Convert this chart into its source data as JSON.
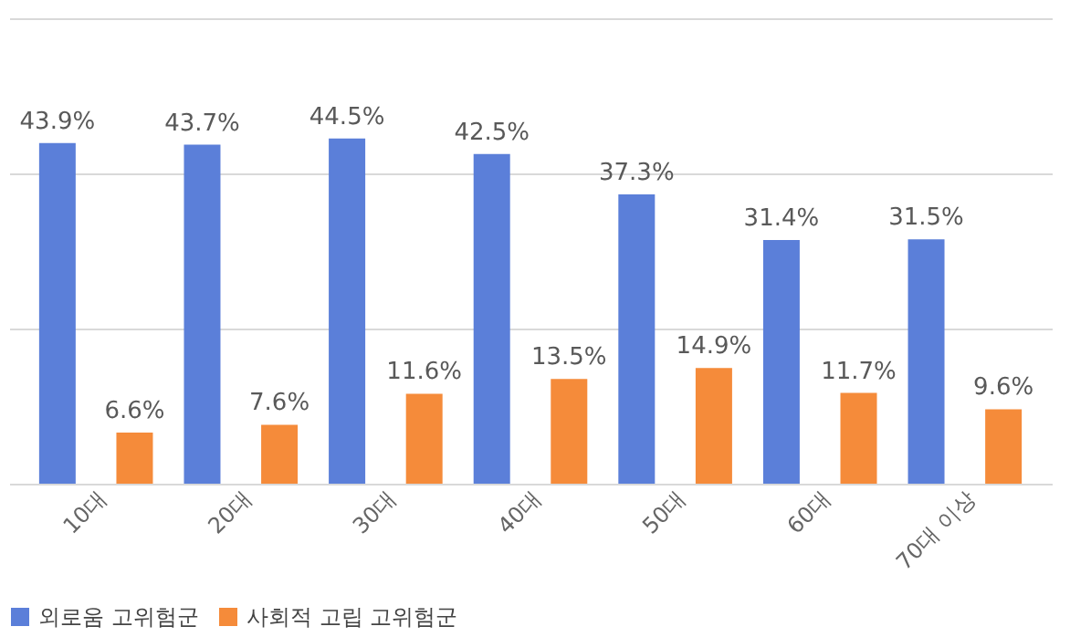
{
  "chart_data": {
    "type": "bar",
    "categories": [
      "10대",
      "20대",
      "30대",
      "40대",
      "50대",
      "60대",
      "70대 이상"
    ],
    "series": [
      {
        "name": "외로움 고위험군",
        "color": "#5b7fd9",
        "values": [
          43.9,
          43.7,
          44.5,
          42.5,
          37.3,
          31.4,
          31.5
        ],
        "value_labels": [
          "43.9%",
          "43.7%",
          "44.5%",
          "42.5%",
          "37.3%",
          "31.4%",
          "31.5%"
        ]
      },
      {
        "name": "사회적 고립 고위험군",
        "color": "#f58b3a",
        "values": [
          6.6,
          7.6,
          11.6,
          13.5,
          14.9,
          11.7,
          9.6
        ],
        "value_labels": [
          "6.6%",
          "7.6%",
          "11.6%",
          "13.5%",
          "14.9%",
          "11.7%",
          "9.6%"
        ]
      }
    ],
    "ylim": [
      0,
      60
    ],
    "yticks": [
      {
        "value": 0,
        "label": null
      },
      {
        "value": 20,
        "label": null
      },
      {
        "value": 40,
        "label": null
      },
      {
        "value": 60,
        "label": null
      }
    ],
    "grid": "y",
    "legend": "bottom",
    "tick_labels": "x"
  }
}
